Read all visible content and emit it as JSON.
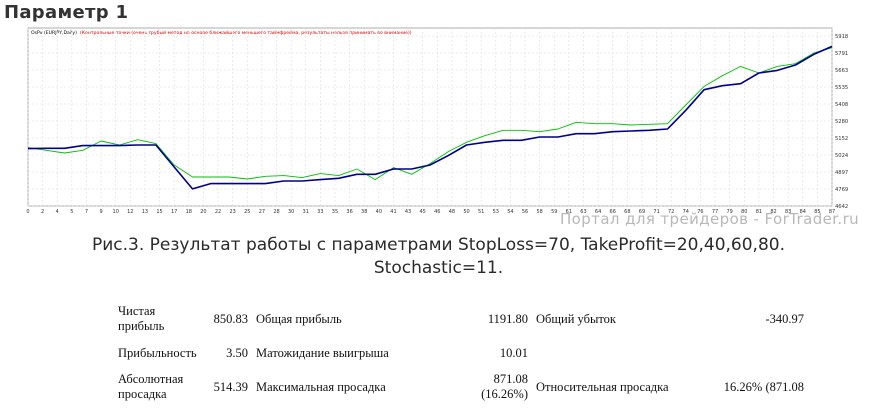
{
  "heading": "Параметр 1",
  "watermark": "Портал для трейдеров - ForTrader.ru",
  "caption": {
    "line1": "Рис.3. Результат работы с параметрами StopLoss=70, TakeProfit=20,40,60,80.",
    "line2": "Stochastic=11."
  },
  "chart_data": {
    "type": "line",
    "title": "OsPv (EURJPY,Daily)",
    "subtitle": "Контрольные точки (очень грубый метод на основе ближайшего меньшего таймфрейма, результаты нельзя принимать во внимание)",
    "xlim": [
      0,
      88
    ],
    "ylim": [
      4642,
      5918
    ],
    "ytick_labels": [
      "5918",
      "5791",
      "5663",
      "5535",
      "5408",
      "5280",
      "5152",
      "5024",
      "4897",
      "4769",
      "4642"
    ],
    "xtick_labels": [
      "0",
      "2",
      "4",
      "5",
      "7",
      "9",
      "10",
      "12",
      "13",
      "15",
      "17",
      "18",
      "20",
      "22",
      "23",
      "25",
      "27",
      "28",
      "30",
      "31",
      "33",
      "35",
      "36",
      "38",
      "40",
      "41",
      "43",
      "45",
      "46",
      "48",
      "50",
      "51",
      "53",
      "54",
      "56",
      "58",
      "59",
      "61",
      "63",
      "64",
      "66",
      "68",
      "69",
      "71",
      "72",
      "74",
      "76",
      "77",
      "79",
      "80",
      "81",
      "82",
      "83",
      "84",
      "85",
      "87"
    ],
    "grid": true,
    "series": [
      {
        "name": "",
        "color": "#00c000",
        "x": [
          0,
          2,
          4,
          6,
          8,
          10,
          12,
          14,
          16,
          18,
          20,
          22,
          24,
          26,
          28,
          30,
          32,
          34,
          36,
          38,
          40,
          42,
          44,
          46,
          48,
          50,
          52,
          54,
          56,
          58,
          60,
          62,
          64,
          66,
          68,
          70,
          72,
          74,
          76,
          78,
          80,
          82,
          84,
          86,
          88
        ],
        "y": [
          5080,
          5060,
          5040,
          5060,
          5130,
          5100,
          5140,
          5110,
          4950,
          4860,
          4860,
          4860,
          4845,
          4865,
          4870,
          4855,
          4885,
          4870,
          4920,
          4840,
          4930,
          4880,
          4960,
          5050,
          5120,
          5170,
          5210,
          5210,
          5200,
          5220,
          5270,
          5260,
          5260,
          5250,
          5255,
          5260,
          5400,
          5540,
          5620,
          5690,
          5640,
          5690,
          5710,
          5790,
          5830
        ]
      },
      {
        "name": "",
        "color": "#00008b",
        "x": [
          0,
          2,
          4,
          6,
          8,
          10,
          12,
          14,
          16,
          18,
          20,
          22,
          24,
          26,
          28,
          30,
          32,
          34,
          36,
          38,
          40,
          42,
          44,
          46,
          48,
          50,
          52,
          54,
          56,
          58,
          60,
          62,
          64,
          66,
          68,
          70,
          72,
          74,
          76,
          78,
          80,
          82,
          84,
          86,
          88
        ],
        "y": [
          5073,
          5075,
          5075,
          5095,
          5095,
          5095,
          5100,
          5100,
          4935,
          4770,
          4810,
          4810,
          4810,
          4810,
          4830,
          4830,
          4840,
          4850,
          4880,
          4880,
          4920,
          4920,
          4950,
          5020,
          5100,
          5120,
          5135,
          5135,
          5160,
          5160,
          5185,
          5185,
          5200,
          5205,
          5210,
          5220,
          5360,
          5515,
          5545,
          5560,
          5640,
          5660,
          5700,
          5780,
          5840
        ]
      }
    ]
  },
  "stats": {
    "rows": [
      [
        {
          "label": "Чистая прибыль",
          "value": "850.83"
        },
        {
          "label": "Общая прибыль",
          "value": "1191.80"
        },
        {
          "label": "Общий убыток",
          "value": "-340.97"
        }
      ],
      [
        {
          "label": "Прибыльность",
          "value": "3.50"
        },
        {
          "label": "Матожидание выигрыша",
          "value": "10.01"
        },
        {
          "label": "",
          "value": ""
        }
      ],
      [
        {
          "label": "Абсолютная просадка",
          "value": "514.39"
        },
        {
          "label": "Максимальная просадка",
          "value": "871.08 (16.26%)"
        },
        {
          "label": "Относительная просадка",
          "value": "16.26% (871.08"
        }
      ]
    ]
  }
}
